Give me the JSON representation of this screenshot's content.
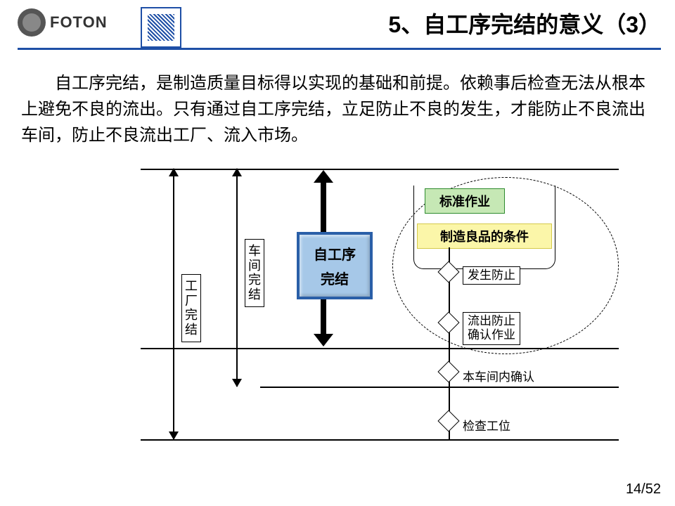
{
  "header": {
    "brand": "FOTON",
    "title": "5、自工序完结的意义（3）"
  },
  "paragraph": "自工序完结，是制造质量目标得以实现的基础和前提。依赖事后检查无法从根本上避免不良的流出。只有通过自工序完结，立足防止不良的发生，才能防止不良流出车间，防止不良流出工厂、流入市场。",
  "diagram": {
    "levels": {
      "factory": "工厂完结",
      "workshop": "车间完结"
    },
    "center_box": {
      "line1": "自工序",
      "line2": "完结"
    },
    "green_box": "标准作业",
    "yellow_box": "制造良品的条件",
    "checks": {
      "occur_prevent": "发生防止",
      "outflow_prevent": "流出防止\n确认作业",
      "in_workshop": "本车间内确认",
      "inspection": "检查工位"
    },
    "hlines_y": [
      0,
      255,
      310,
      385
    ],
    "hlines_w": [
      680,
      680,
      510,
      680
    ],
    "hlines_x": [
      0,
      0,
      170,
      0
    ],
    "colors": {
      "accent": "#1e4fa6",
      "blue_box_fill": "#a6c8e8",
      "blue_box_border": "#2a5fa8",
      "green_fill": "#c6e8b5",
      "green_border": "#2e8b2e",
      "yellow_fill": "#fbf6a9",
      "yellow_border": "#d4c94a"
    }
  },
  "page_num": "14/52"
}
